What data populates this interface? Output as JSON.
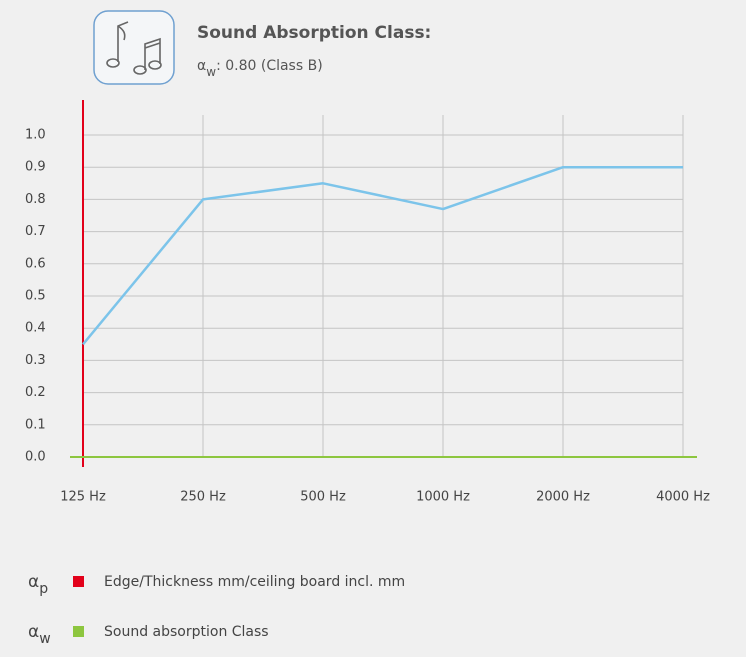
{
  "chart_data": {
    "type": "line",
    "title": "Sound Absorption Class:",
    "subtitle": {
      "symbol": "α",
      "subscript": "w",
      "text": ": 0.80 (Class B)"
    },
    "categories": [
      "125 Hz",
      "250 Hz",
      "500 Hz",
      "1000 Hz",
      "2000 Hz",
      "4000 Hz"
    ],
    "series": [
      {
        "color": "#7cc4ea",
        "values": [
          0.35,
          0.8,
          0.85,
          0.77,
          0.9,
          0.9
        ]
      }
    ],
    "ylim": [
      0,
      1
    ],
    "yticks": [
      {
        "value": 0,
        "label": "0.0"
      },
      0.1,
      0.2,
      0.3,
      0.4,
      0.5,
      0.6,
      0.7,
      0.8,
      0.9,
      {
        "value": 1,
        "label": "1.0"
      }
    ],
    "grid": true,
    "legend": [
      {
        "symbol": "α",
        "subscript": "p",
        "label": "Edge/Thickness mm/ceiling board incl. mm",
        "color": "#e2001a"
      },
      {
        "symbol": "α",
        "subscript": "w",
        "label": "Sound absorption Class",
        "color": "#8dc63f"
      }
    ]
  }
}
